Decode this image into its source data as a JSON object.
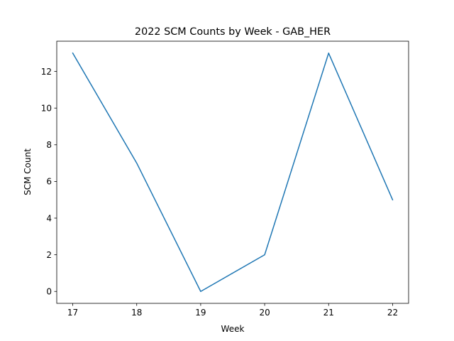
{
  "chart_data": {
    "type": "line",
    "title": "2022 SCM Counts by Week - GAB_HER",
    "xlabel": "Week",
    "ylabel": "SCM Count",
    "x": [
      17,
      18,
      19,
      20,
      21,
      22
    ],
    "series": [
      {
        "values": [
          13,
          7,
          0,
          2,
          13,
          5
        ],
        "color": "#1f77b4"
      }
    ],
    "xlim": [
      16.75,
      22.25
    ],
    "ylim": [
      -0.65,
      13.65
    ],
    "xticks": [
      17,
      18,
      19,
      20,
      21,
      22
    ],
    "yticks": [
      0,
      2,
      4,
      6,
      8,
      10,
      12
    ],
    "grid": false
  }
}
